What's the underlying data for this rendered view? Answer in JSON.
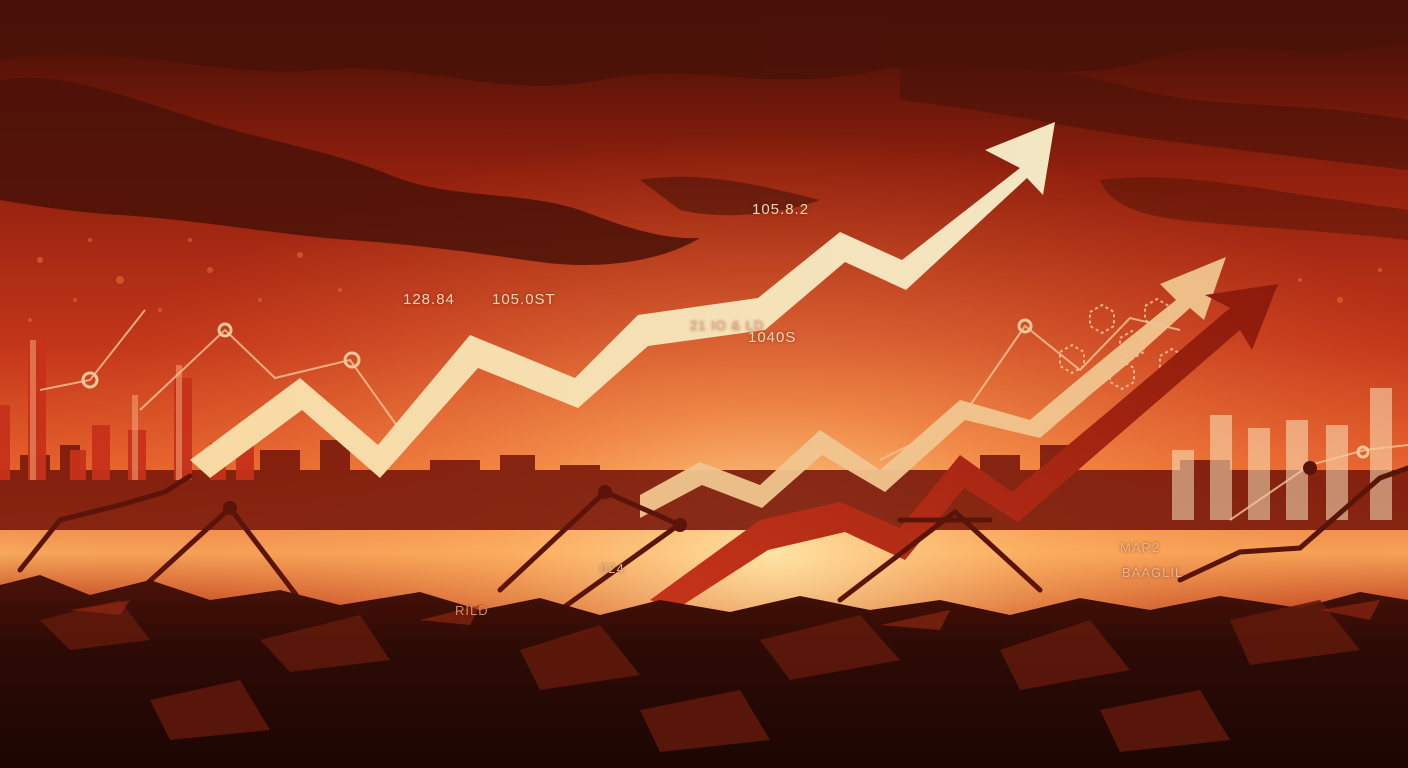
{
  "palette": {
    "sky_top": "#3a0c05",
    "sky_mid": "#b8301a",
    "horizon_glow": "#ffd89a",
    "cream_arrow": "#f3dcae",
    "dark_arrow": "#a3220f",
    "rubble": "#2a0904",
    "cloud": "#4a1208"
  },
  "labels": {
    "value_top": "105.8.2",
    "value_left": "128.84",
    "value_mid": "105.0ST",
    "value_center": "1040S",
    "value_small": "21 IO & LD",
    "value_bottom_left": "024",
    "value_right_a": "MAR2",
    "value_right_b": "BAAGLIL",
    "ground_sign": "RILD"
  },
  "icons": {
    "upward_arrows": "trend-arrow-icon",
    "hexagon_network": "hexagon-network-icon"
  }
}
